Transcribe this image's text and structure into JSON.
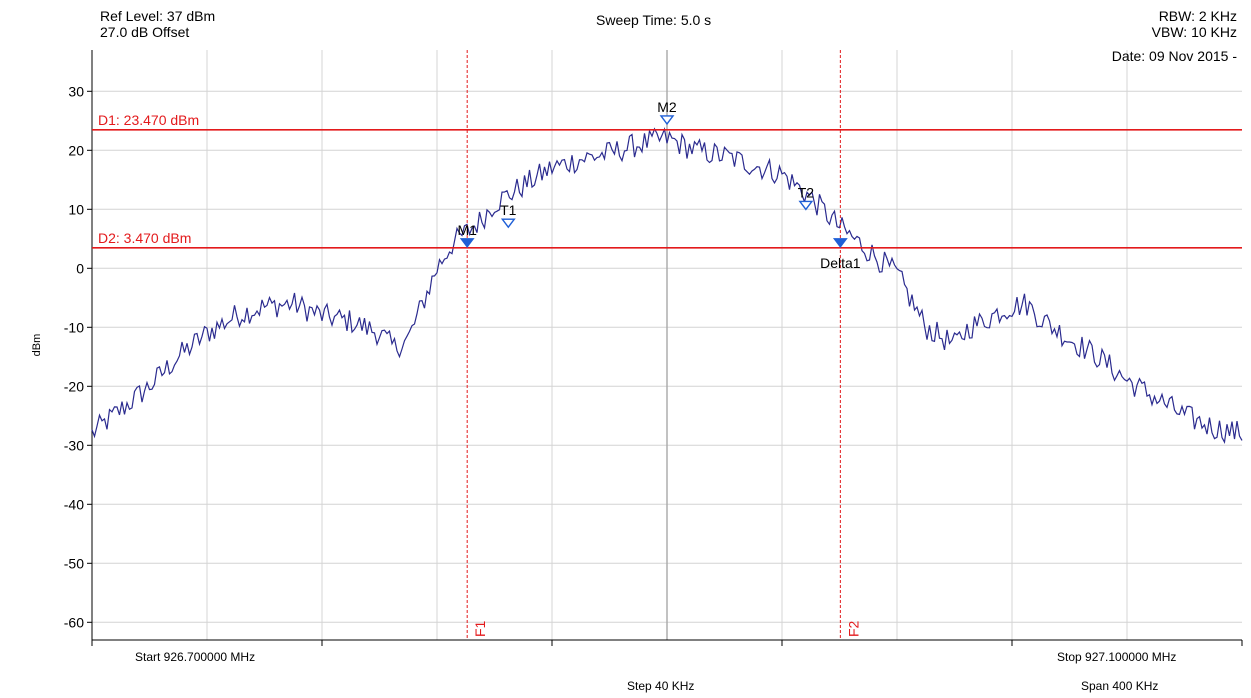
{
  "header": {
    "ref_level": "Ref Level: 37 dBm",
    "offset": "27.0 dB Offset",
    "sweep_time": "Sweep Time: 5.0 s",
    "rbw": "RBW: 2 KHz",
    "vbw": "VBW: 10 KHz",
    "date": "Date: 09 Nov 2015 -"
  },
  "footer": {
    "start": "Start 926.700000 MHz",
    "stop": "Stop 927.100000 MHz",
    "step": "Step 40 KHz",
    "span": "Span 400 KHz"
  },
  "colors": {
    "trace": "#2b2b8f",
    "threshold": "#e31a1c",
    "marker": "#1f5fd6",
    "grid": "#d4d4d4"
  },
  "chart_data": {
    "type": "line",
    "title": "",
    "xlabel": "",
    "ylabel": "dBm",
    "xlim": [
      926.7,
      927.1
    ],
    "ylim": [
      -63,
      37
    ],
    "y_ticks": [
      30,
      20,
      10,
      0,
      -10,
      -20,
      -30,
      -40,
      -50,
      -60
    ],
    "y_tick_labels": [
      "30",
      "20",
      "10",
      "0",
      "-10",
      "-20",
      "-30",
      "-40",
      "-50",
      "-60"
    ],
    "grid": true,
    "series": [
      {
        "x": [
          926.7,
          926.71,
          926.72,
          926.73,
          926.74,
          926.75,
          926.76,
          926.77,
          926.78,
          926.79,
          926.8,
          926.805,
          926.81,
          926.815,
          926.82,
          926.825,
          926.83,
          926.835,
          926.84,
          926.85,
          926.86,
          926.87,
          926.88,
          926.89,
          926.9,
          926.91,
          926.92,
          926.93,
          926.94,
          926.95,
          926.96,
          926.97,
          926.98,
          926.99,
          927.0,
          927.005,
          927.01,
          927.015,
          927.02,
          927.025,
          927.03,
          927.04,
          927.05,
          927.06,
          927.07,
          927.08,
          927.09,
          927.1
        ],
        "y": [
          -28,
          -24,
          -20,
          -15,
          -11,
          -8,
          -6.5,
          -6,
          -8,
          -9,
          -11,
          -13.5,
          -12,
          -6,
          0,
          4,
          6,
          8,
          11,
          14,
          17,
          18.5,
          19.5,
          21,
          22,
          20,
          19,
          17.5,
          16,
          12,
          7,
          3,
          -1,
          -10,
          -13,
          -10,
          -9,
          -7.5,
          -6.5,
          -6,
          -8.5,
          -12,
          -15,
          -19,
          -22,
          -25,
          -27,
          -28
        ]
      }
    ],
    "threshold_lines": [
      {
        "label": "D1: 23.470 dBm",
        "value": 23.47
      },
      {
        "label": "D2: 3.470 dBm",
        "value": 3.47
      }
    ],
    "frequency_lines": [
      {
        "label": "F1",
        "x": 926.8305
      },
      {
        "label": "F2",
        "x": 926.9603
      }
    ],
    "center_line_x": 926.9,
    "markers": [
      {
        "label": "M1",
        "x": 926.8305,
        "y": 3.47,
        "filled": true
      },
      {
        "label": "T1",
        "x": 926.8448,
        "y": 6.8,
        "filled": false
      },
      {
        "label": "M2",
        "x": 926.9,
        "y": 24.3,
        "filled": false
      },
      {
        "label": "T2",
        "x": 926.9483,
        "y": 9.8,
        "filled": false
      },
      {
        "label": "Delta1",
        "x": 926.9603,
        "y": 3.47,
        "filled": true
      }
    ]
  }
}
